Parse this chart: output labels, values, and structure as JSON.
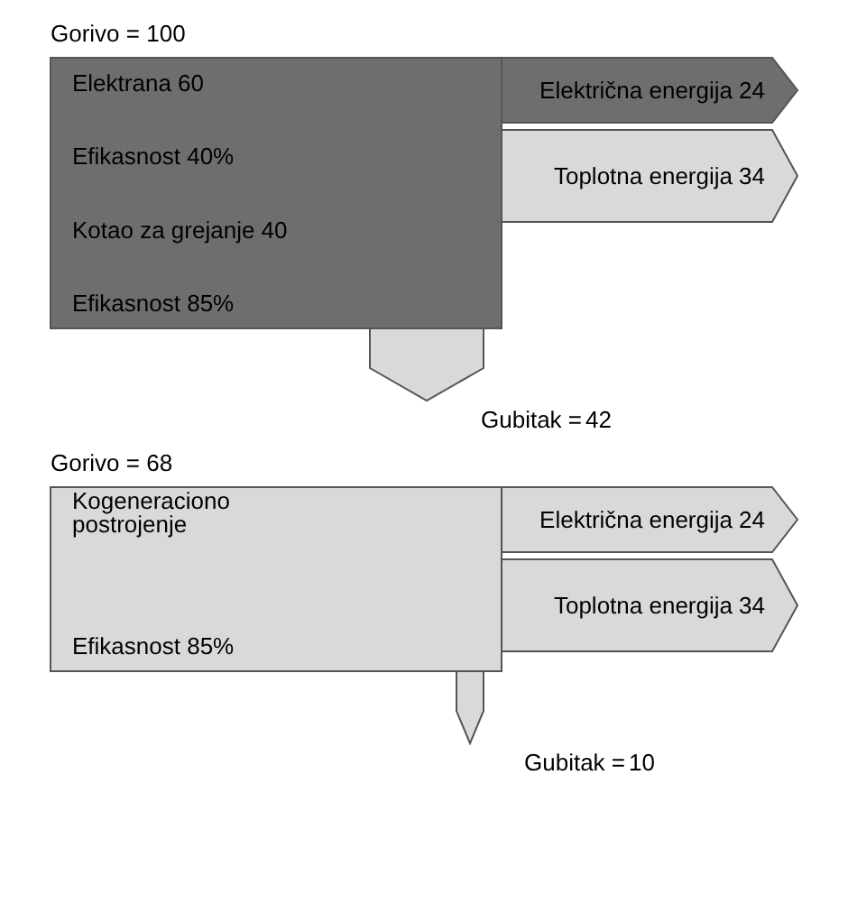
{
  "chart_data": [
    {
      "type": "other",
      "title": "Gorivo = 100",
      "categories": [
        "Električna energija",
        "Toplotna energija",
        "Gubitak ="
      ],
      "values": [
        24,
        34,
        42
      ],
      "data_labels": true,
      "colors": [
        "#6e6e6e",
        "#d9d9d9",
        "#d9d9d9"
      ],
      "annotations": [
        "Elektrana 60",
        "Efikasnost 40%",
        "Kotao za grejanje 40",
        "Efikasnost 85%"
      ]
    },
    {
      "type": "other",
      "title": "Gorivo = 68",
      "categories": [
        "Električna energija",
        "Toplotna energija",
        "Gubitak ="
      ],
      "values": [
        24,
        34,
        10
      ],
      "data_labels": true,
      "colors": [
        "#d9d9d9",
        "#d9d9d9",
        "#d9d9d9"
      ],
      "annotations": [
        "Kogeneraciono postrojenje",
        "Efikasnost 85%"
      ]
    }
  ]
}
